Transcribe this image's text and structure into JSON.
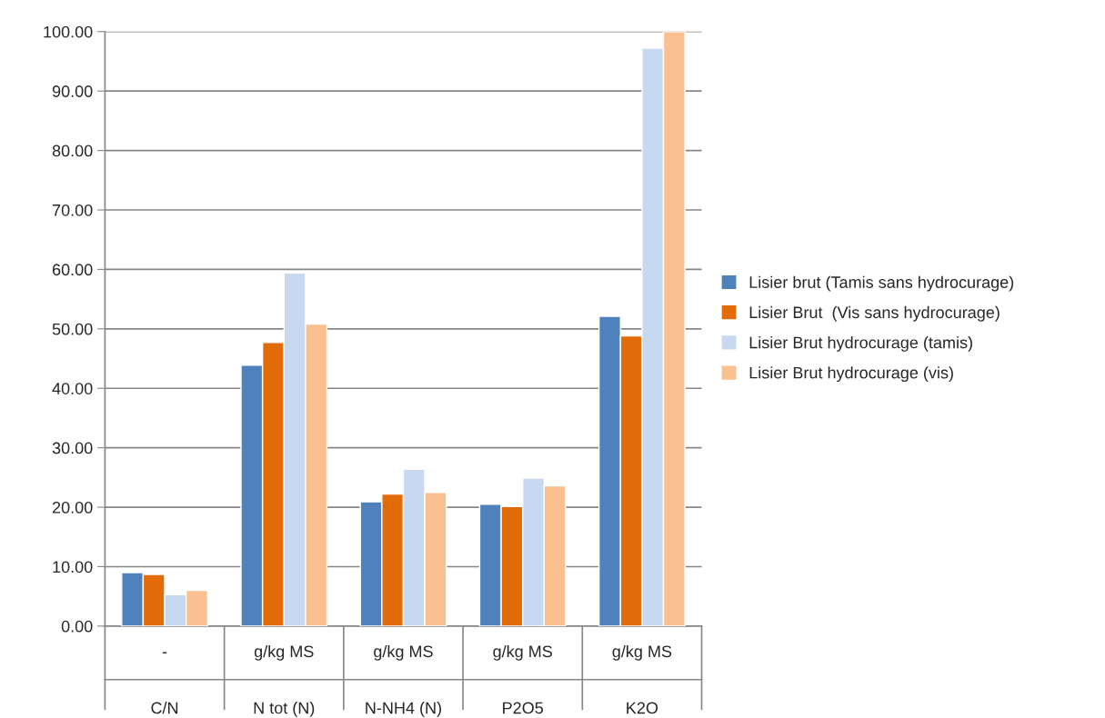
{
  "chart_data": {
    "type": "bar",
    "categories": [
      "-\nC/N",
      "g/kg MS\nN tot (N)",
      "g/kg MS\nN-NH4 (N)",
      "g/kg MS\nP2O5",
      "g/kg MS\nK2O"
    ],
    "series": [
      {
        "name": "Lisier brut (Tamis sans hydrocurage)",
        "color": "#4f81bd",
        "values": [
          9.0,
          43.9,
          20.9,
          20.5,
          52.1
        ]
      },
      {
        "name": "Lisier Brut  (Vis sans hydrocurage)",
        "color": "#e36c0a",
        "values": [
          8.7,
          47.7,
          22.2,
          20.1,
          48.8
        ]
      },
      {
        "name": "Lisier Brut hydrocurage (tamis)",
        "color": "#c6d9f1",
        "values": [
          5.3,
          59.4,
          26.4,
          24.9,
          97.2
        ]
      },
      {
        "name": "Lisier Brut hydrocurage (vis)",
        "color": "#fac090",
        "values": [
          6.0,
          50.8,
          22.5,
          23.6,
          100.0
        ]
      }
    ],
    "ylim": [
      0,
      100
    ],
    "yticks": [
      {
        "value": 0,
        "label": "0.00"
      },
      {
        "value": 10,
        "label": "10.00"
      },
      {
        "value": 20,
        "label": "20.00"
      },
      {
        "value": 30,
        "label": "30.00"
      },
      {
        "value": 40,
        "label": "40.00"
      },
      {
        "value": 50,
        "label": "50.00"
      },
      {
        "value": 60,
        "label": "60.00"
      },
      {
        "value": 70,
        "label": "70.00"
      },
      {
        "value": 80,
        "label": "80.00"
      },
      {
        "value": 90,
        "label": "90.00"
      },
      {
        "value": 100,
        "label": "100.00"
      }
    ],
    "grid": "y",
    "legend": "right"
  }
}
